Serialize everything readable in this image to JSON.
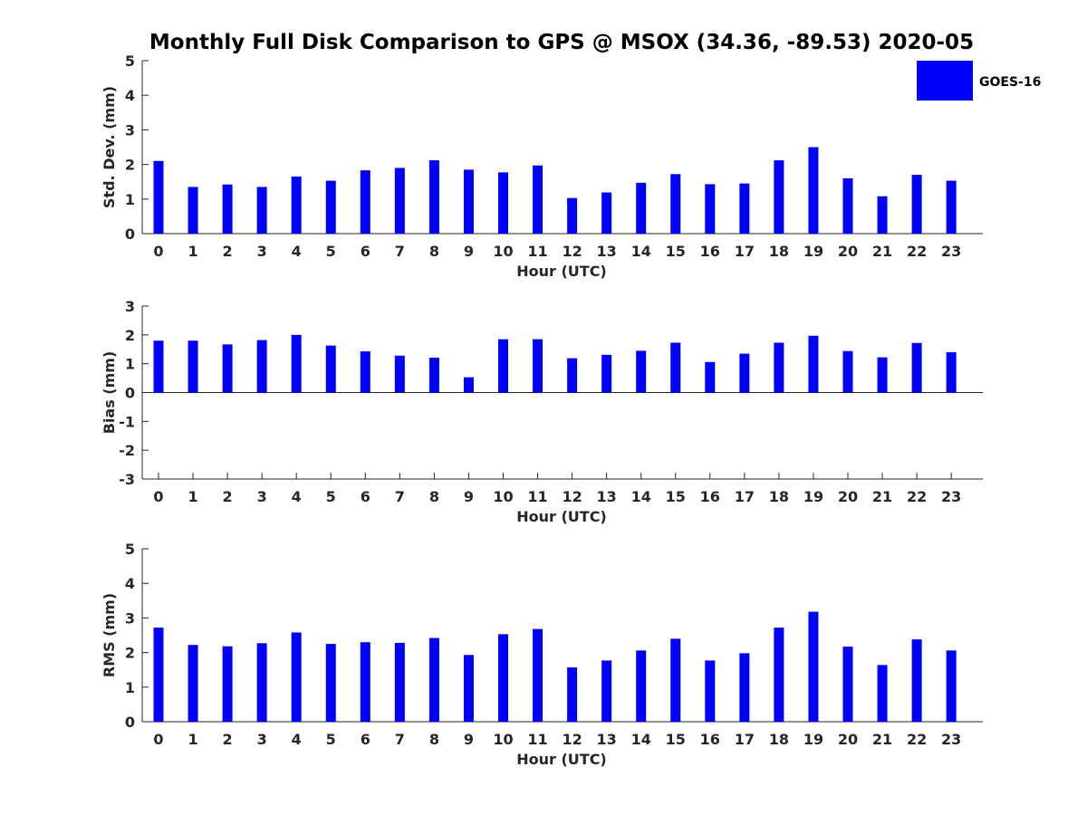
{
  "title": "Monthly Full Disk Comparison to GPS @ MSOX (34.36, -89.53) 2020-05",
  "legend": {
    "label": "GOES-16",
    "color": "#0000ff",
    "placement": "top-right"
  },
  "chart_data": [
    {
      "type": "bar",
      "name": "std-dev",
      "categories": [
        "0",
        "1",
        "2",
        "3",
        "4",
        "5",
        "6",
        "7",
        "8",
        "9",
        "10",
        "11",
        "12",
        "13",
        "14",
        "15",
        "16",
        "17",
        "18",
        "19",
        "20",
        "21",
        "22",
        "23"
      ],
      "series": [
        {
          "name": "GOES-16",
          "color": "#0000ff",
          "values": [
            2.1,
            1.35,
            1.42,
            1.35,
            1.65,
            1.53,
            1.83,
            1.9,
            2.12,
            1.85,
            1.77,
            1.97,
            1.03,
            1.19,
            1.47,
            1.72,
            1.43,
            1.45,
            2.12,
            2.5,
            1.6,
            1.08,
            1.7,
            1.53
          ]
        }
      ],
      "xlabel": "Hour (UTC)",
      "ylabel": "Std. Dev. (mm)",
      "ylim": [
        0,
        5
      ],
      "yticks": [
        "0",
        "1",
        "2",
        "3",
        "4",
        "5"
      ],
      "grid": false
    },
    {
      "type": "bar",
      "name": "bias",
      "categories": [
        "0",
        "1",
        "2",
        "3",
        "4",
        "5",
        "6",
        "7",
        "8",
        "9",
        "10",
        "11",
        "12",
        "13",
        "14",
        "15",
        "16",
        "17",
        "18",
        "19",
        "20",
        "21",
        "22",
        "23"
      ],
      "series": [
        {
          "name": "GOES-16",
          "color": "#0000ff",
          "values": [
            1.8,
            1.8,
            1.67,
            1.82,
            2.0,
            1.63,
            1.43,
            1.28,
            1.21,
            0.53,
            1.85,
            1.85,
            1.19,
            1.31,
            1.45,
            1.73,
            1.06,
            1.35,
            1.73,
            1.97,
            1.44,
            1.22,
            1.72,
            1.4
          ]
        }
      ],
      "xlabel": "Hour (UTC)",
      "ylabel": "Bias (mm)",
      "ylim": [
        -3,
        3
      ],
      "yticks": [
        "-3",
        "-2",
        "-1",
        "0",
        "1",
        "2",
        "3"
      ],
      "grid": false
    },
    {
      "type": "bar",
      "name": "rms",
      "categories": [
        "0",
        "1",
        "2",
        "3",
        "4",
        "5",
        "6",
        "7",
        "8",
        "9",
        "10",
        "11",
        "12",
        "13",
        "14",
        "15",
        "16",
        "17",
        "18",
        "19",
        "20",
        "21",
        "22",
        "23"
      ],
      "series": [
        {
          "name": "GOES-16",
          "color": "#0000ff",
          "values": [
            2.72,
            2.22,
            2.18,
            2.27,
            2.58,
            2.25,
            2.3,
            2.28,
            2.42,
            1.93,
            2.53,
            2.68,
            1.57,
            1.77,
            2.06,
            2.4,
            1.77,
            1.98,
            2.72,
            3.18,
            2.17,
            1.64,
            2.38,
            2.06
          ]
        }
      ],
      "xlabel": "Hour (UTC)",
      "ylabel": "RMS (mm)",
      "ylim": [
        0,
        5
      ],
      "yticks": [
        "0",
        "1",
        "2",
        "3",
        "4",
        "5"
      ],
      "grid": false
    }
  ]
}
